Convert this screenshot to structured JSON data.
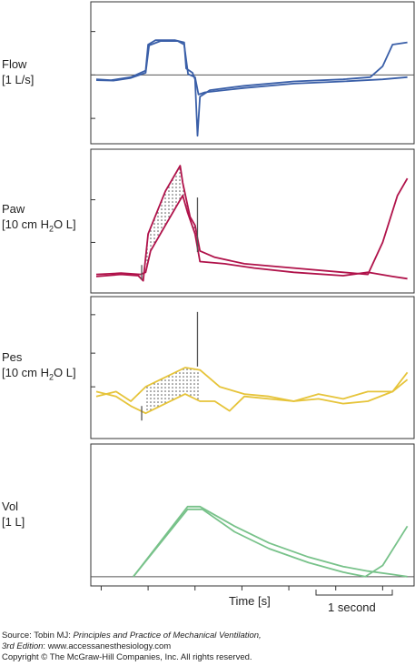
{
  "labels": {
    "flow": {
      "name": "Flow",
      "unit": "[1 L/s]"
    },
    "paw": {
      "name": "Paw",
      "unit_pre": "[10 cm H",
      "unit_sub": "2",
      "unit_post": "O L]"
    },
    "pes": {
      "name": "Pes",
      "unit_pre": "[10 cm H",
      "unit_sub": "2",
      "unit_post": "O L]"
    },
    "vol": {
      "name": "Vol",
      "unit": "[1 L]"
    }
  },
  "time_axis_label": "Time [s]",
  "scale_bar_label": "1 second",
  "source": {
    "line1_prefix": "Source: Tobin MJ: ",
    "line1_title": "Principles and Practice of Mechanical Ventilation,",
    "line2_edition": "3rd Edition",
    "line2_rest": ": www.accessanesthesiology.com",
    "line3": "Copyright © The McGraw-Hill Companies, Inc. All rights reserved."
  },
  "colors": {
    "flow": "#3a5fa8",
    "paw": "#b0124a",
    "pes": "#e6c43a",
    "vol": "#78c28a",
    "axis": "#333333"
  },
  "chart_data": [
    {
      "type": "line",
      "panel": "flow",
      "ylabel": "Flow [1 L/s]",
      "series": [
        {
          "values": [
            [
              0,
              -0.1
            ],
            [
              0.3,
              -0.12
            ],
            [
              0.7,
              -0.05
            ],
            [
              1.0,
              0.1
            ],
            [
              1.05,
              0.7
            ],
            [
              1.2,
              0.8
            ],
            [
              1.6,
              0.8
            ],
            [
              1.78,
              0.75
            ],
            [
              1.82,
              0.15
            ],
            [
              1.95,
              0.05
            ],
            [
              2.0,
              -0.1
            ],
            [
              2.05,
              -1.4
            ],
            [
              2.1,
              -0.5
            ],
            [
              2.3,
              -0.35
            ],
            [
              3.0,
              -0.25
            ],
            [
              4.0,
              -0.15
            ],
            [
              5.0,
              -0.1
            ],
            [
              5.55,
              -0.05
            ],
            [
              5.8,
              0.2
            ],
            [
              6.0,
              0.7
            ],
            [
              6.3,
              0.75
            ]
          ]
        },
        {
          "values": [
            [
              0,
              -0.12
            ],
            [
              0.35,
              -0.13
            ],
            [
              0.7,
              -0.07
            ],
            [
              1.0,
              0.05
            ],
            [
              1.07,
              0.68
            ],
            [
              1.3,
              0.78
            ],
            [
              1.65,
              0.78
            ],
            [
              1.78,
              0.7
            ],
            [
              1.86,
              0.02
            ],
            [
              2.0,
              -0.05
            ],
            [
              2.07,
              -0.45
            ],
            [
              2.2,
              -0.4
            ],
            [
              3.0,
              -0.3
            ],
            [
              4.0,
              -0.2
            ],
            [
              5.0,
              -0.15
            ],
            [
              5.8,
              -0.1
            ],
            [
              6.3,
              -0.05
            ]
          ]
        }
      ]
    },
    {
      "type": "line",
      "panel": "paw",
      "ylabel": "Paw [10 cm H2O L]",
      "series": [
        {
          "values": [
            [
              0,
              0.0
            ],
            [
              0.5,
              0.05
            ],
            [
              0.85,
              0.02
            ],
            [
              0.95,
              -0.1
            ],
            [
              1.05,
              1.0
            ],
            [
              1.4,
              2.0
            ],
            [
              1.7,
              2.6
            ],
            [
              1.75,
              2.2
            ],
            [
              1.9,
              1.4
            ],
            [
              2.0,
              1.2
            ],
            [
              2.1,
              0.6
            ],
            [
              2.4,
              0.45
            ],
            [
              3.0,
              0.3
            ],
            [
              4.0,
              0.2
            ],
            [
              5.0,
              0.1
            ],
            [
              5.5,
              0.05
            ],
            [
              5.8,
              0.8
            ],
            [
              6.1,
              1.9
            ],
            [
              6.3,
              2.3
            ]
          ]
        },
        {
          "values": [
            [
              0,
              0.05
            ],
            [
              0.5,
              0.08
            ],
            [
              0.9,
              0.05
            ],
            [
              1.0,
              0.1
            ],
            [
              1.1,
              0.6
            ],
            [
              1.4,
              1.2
            ],
            [
              1.6,
              1.6
            ],
            [
              1.75,
              1.9
            ],
            [
              1.85,
              1.5
            ],
            [
              2.0,
              1.0
            ],
            [
              2.1,
              0.35
            ],
            [
              2.6,
              0.3
            ],
            [
              3.2,
              0.2
            ],
            [
              4.0,
              0.1
            ],
            [
              5.0,
              0.02
            ],
            [
              5.5,
              0.1
            ],
            [
              6.0,
              0.0
            ],
            [
              6.3,
              -0.05
            ]
          ]
        }
      ]
    },
    {
      "type": "line",
      "panel": "pes",
      "ylabel": "Pes [10 cm H2O L]",
      "series": [
        {
          "values": [
            [
              0,
              0.0
            ],
            [
              0.4,
              0.1
            ],
            [
              0.7,
              -0.1
            ],
            [
              1.0,
              0.2
            ],
            [
              1.4,
              0.4
            ],
            [
              1.8,
              0.6
            ],
            [
              2.1,
              0.55
            ],
            [
              2.5,
              0.2
            ],
            [
              3.0,
              0.05
            ],
            [
              3.5,
              0.0
            ],
            [
              4.0,
              -0.1
            ],
            [
              4.5,
              0.05
            ],
            [
              5.0,
              -0.05
            ],
            [
              5.5,
              0.1
            ],
            [
              6.0,
              0.1
            ],
            [
              6.3,
              0.5
            ]
          ]
        },
        {
          "values": [
            [
              0,
              0.1
            ],
            [
              0.4,
              0.0
            ],
            [
              0.7,
              -0.2
            ],
            [
              1.0,
              -0.35
            ],
            [
              1.4,
              -0.15
            ],
            [
              1.8,
              0.05
            ],
            [
              2.1,
              -0.1
            ],
            [
              2.4,
              -0.1
            ],
            [
              2.7,
              -0.3
            ],
            [
              3.0,
              0.0
            ],
            [
              3.5,
              -0.05
            ],
            [
              4.0,
              -0.1
            ],
            [
              4.5,
              -0.05
            ],
            [
              5.0,
              -0.15
            ],
            [
              5.5,
              -0.1
            ],
            [
              6.0,
              0.1
            ],
            [
              6.3,
              0.35
            ]
          ]
        }
      ]
    },
    {
      "type": "line",
      "panel": "vol",
      "ylabel": "Vol [1 L]",
      "series": [
        {
          "values": [
            [
              0.75,
              0.0
            ],
            [
              1.85,
              1.2
            ],
            [
              2.15,
              1.2
            ],
            [
              2.8,
              0.8
            ],
            [
              3.5,
              0.5
            ],
            [
              4.3,
              0.25
            ],
            [
              5.0,
              0.08
            ],
            [
              5.45,
              0.0
            ],
            [
              5.8,
              0.2
            ],
            [
              6.3,
              0.9
            ]
          ]
        },
        {
          "values": [
            [
              0.75,
              0.0
            ],
            [
              1.85,
              1.25
            ],
            [
              2.1,
              1.25
            ],
            [
              2.8,
              0.9
            ],
            [
              3.5,
              0.6
            ],
            [
              4.3,
              0.35
            ],
            [
              5.0,
              0.18
            ],
            [
              5.5,
              0.1
            ],
            [
              6.0,
              0.04
            ],
            [
              6.3,
              0.0
            ]
          ]
        }
      ]
    }
  ]
}
